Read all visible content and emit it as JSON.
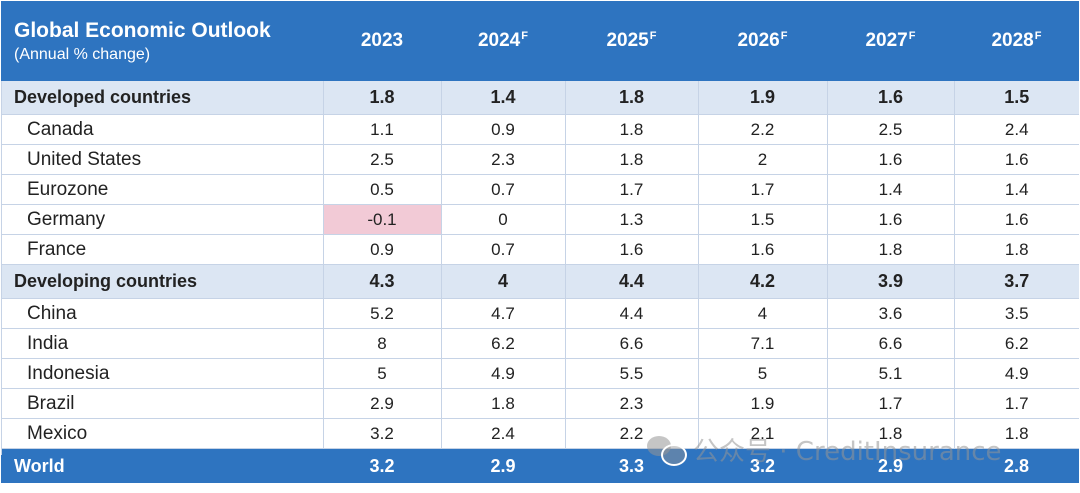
{
  "chart_data": {
    "type": "table",
    "title": "Global Economic Outlook",
    "subtitle": "(Annual % change)",
    "columns": [
      {
        "year": "2023",
        "sup": ""
      },
      {
        "year": "2024",
        "sup": "F"
      },
      {
        "year": "2025",
        "sup": "F"
      },
      {
        "year": "2026",
        "sup": "F"
      },
      {
        "year": "2027",
        "sup": "F"
      },
      {
        "year": "2028",
        "sup": "F"
      }
    ],
    "groups": [
      {
        "name": "Developed countries",
        "values": [
          "1.8",
          "1.4",
          "1.8",
          "1.9",
          "1.6",
          "1.5"
        ],
        "rows": [
          {
            "name": "Canada",
            "values": [
              "1.1",
              "0.9",
              "1.8",
              "2.2",
              "2.5",
              "2.4"
            ]
          },
          {
            "name": "United States",
            "values": [
              "2.5",
              "2.3",
              "1.8",
              "2",
              "1.6",
              "1.6"
            ]
          },
          {
            "name": "Eurozone",
            "values": [
              "0.5",
              "0.7",
              "1.7",
              "1.7",
              "1.4",
              "1.4"
            ]
          },
          {
            "name": "Germany",
            "values": [
              "-0.1",
              "0",
              "1.3",
              "1.5",
              "1.6",
              "1.6"
            ]
          },
          {
            "name": "France",
            "values": [
              "0.9",
              "0.7",
              "1.6",
              "1.6",
              "1.8",
              "1.8"
            ]
          }
        ]
      },
      {
        "name": "Developing countries",
        "values": [
          "4.3",
          "4",
          "4.4",
          "4.2",
          "3.9",
          "3.7"
        ],
        "rows": [
          {
            "name": "China",
            "values": [
              "5.2",
              "4.7",
              "4.4",
              "4",
              "3.6",
              "3.5"
            ]
          },
          {
            "name": "India",
            "values": [
              "8",
              "6.2",
              "6.6",
              "7.1",
              "6.6",
              "6.2"
            ]
          },
          {
            "name": "Indonesia",
            "values": [
              "5",
              "4.9",
              "5.5",
              "5",
              "5.1",
              "4.9"
            ]
          },
          {
            "name": "Brazil",
            "values": [
              "2.9",
              "1.8",
              "2.3",
              "1.9",
              "1.7",
              "1.7"
            ]
          },
          {
            "name": "Mexico",
            "values": [
              "3.2",
              "2.4",
              "2.2",
              "2.1",
              "1.8",
              "1.8"
            ]
          }
        ]
      }
    ],
    "total": {
      "name": "World",
      "values": [
        "3.2",
        "2.9",
        "3.3",
        "3.2",
        "2.9",
        "2.8"
      ]
    },
    "highlight_color": "#f2cad6",
    "header_color": "#2e74c0",
    "group_row_color": "#dce6f3"
  },
  "watermark": {
    "text": "公众号 · CreditInsurance",
    "icon": "wechat-icon"
  }
}
